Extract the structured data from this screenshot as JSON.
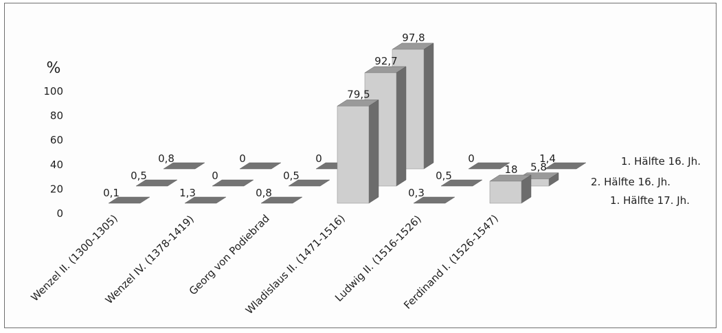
{
  "chart_data": {
    "type": "bar",
    "subtype": "3d-grouped-depth",
    "ylabel": "%",
    "ylim": [
      0,
      100
    ],
    "yticks": [
      "0",
      "20",
      "40",
      "60",
      "80",
      "100"
    ],
    "grid": false,
    "legend_position": "right",
    "categories": [
      "Wenzel II. (1300-1305)",
      "Wenzel IV. (1378-1419)",
      "Georg von Podiebrad",
      "Wladislaus II. (1471-1516)",
      "Ludwig II. (1516-1526)",
      "Ferdinand I. (1526-1547)"
    ],
    "series": [
      {
        "name": "1. Hälfte 17. Jh.",
        "values": [
          0.1,
          1.3,
          0.8,
          79.5,
          0.3,
          18
        ],
        "labels": [
          "0,1",
          "1,3",
          "0,8",
          "79,5",
          "0,3",
          "18"
        ]
      },
      {
        "name": "2. Hälfte 16. Jh.",
        "values": [
          0.5,
          0,
          0.5,
          92.7,
          0.5,
          5.8
        ],
        "labels": [
          "0,5",
          "0",
          "0,5",
          "92,7",
          "0,5",
          "5,8"
        ]
      },
      {
        "name": "1. Hälfte 16. Jh.",
        "values": [
          0.8,
          0,
          0,
          97.8,
          0,
          1.4
        ],
        "labels": [
          "0,8",
          "0",
          "0",
          "97,8",
          "0",
          "1,4"
        ]
      }
    ],
    "colors": {
      "front": "#cfcfcf",
      "side": "#6c6c6c",
      "top": "#9a9a9a",
      "flat": "#747474"
    }
  }
}
